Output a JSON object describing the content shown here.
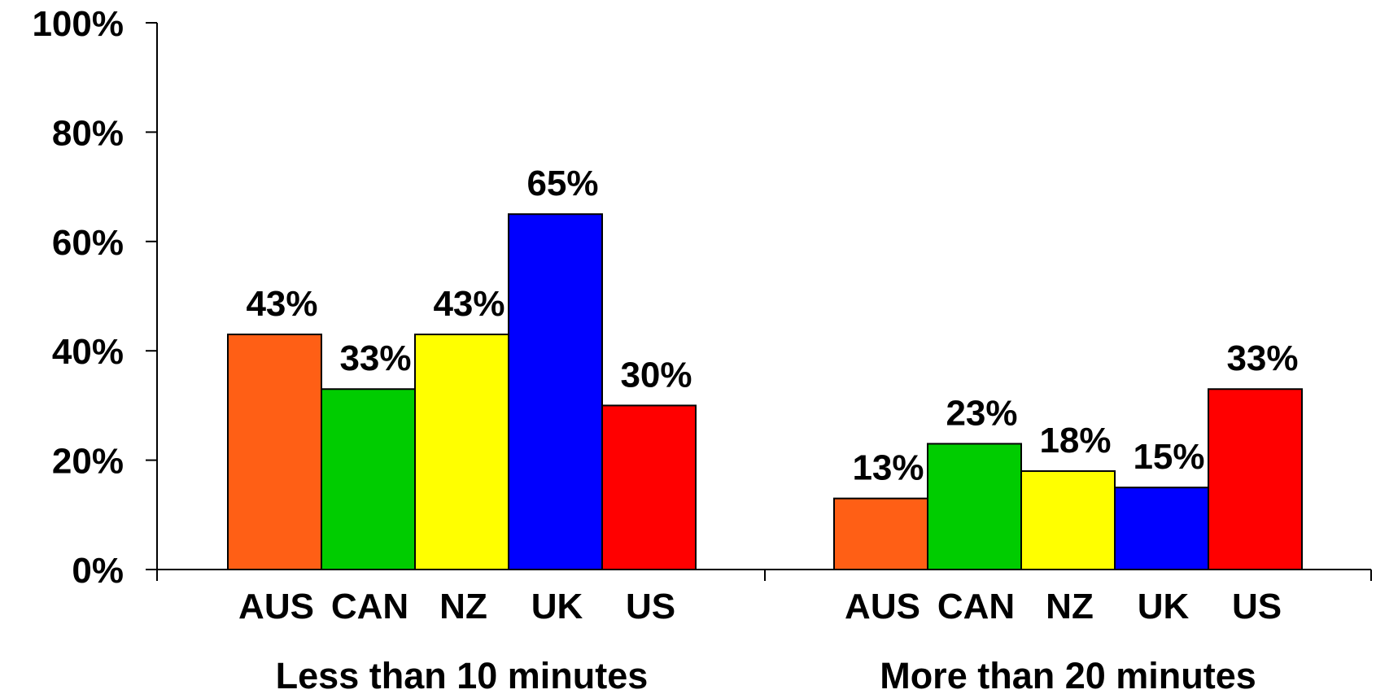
{
  "chart_data": {
    "type": "bar",
    "title": "",
    "xlabel": "",
    "ylabel": "",
    "ylim": [
      0,
      100
    ],
    "yticks": [
      "0%",
      "20%",
      "40%",
      "60%",
      "80%",
      "100%"
    ],
    "ytick_values": [
      0,
      20,
      40,
      60,
      80,
      100
    ],
    "grid": false,
    "legend": "none",
    "categories": [
      "AUS",
      "CAN",
      "NZ",
      "UK",
      "US"
    ],
    "series_colors": [
      "#ff5f15",
      "#00cc00",
      "#ffff00",
      "#0000ff",
      "#ff0000"
    ],
    "groups": [
      {
        "name": "Less than 10 minutes",
        "labels": [
          "AUS",
          "CAN",
          "NZ",
          "UK",
          "US"
        ],
        "values": [
          43,
          33,
          43,
          65,
          30
        ],
        "value_labels": [
          "43%",
          "33%",
          "43%",
          "65%",
          "30%"
        ]
      },
      {
        "name": "More than 20 minutes",
        "labels": [
          "AUS",
          "CAN",
          "NZ",
          "UK",
          "US"
        ],
        "values": [
          13,
          23,
          18,
          15,
          33
        ],
        "value_labels": [
          "13%",
          "23%",
          "18%",
          "15%",
          "33%"
        ]
      }
    ]
  }
}
